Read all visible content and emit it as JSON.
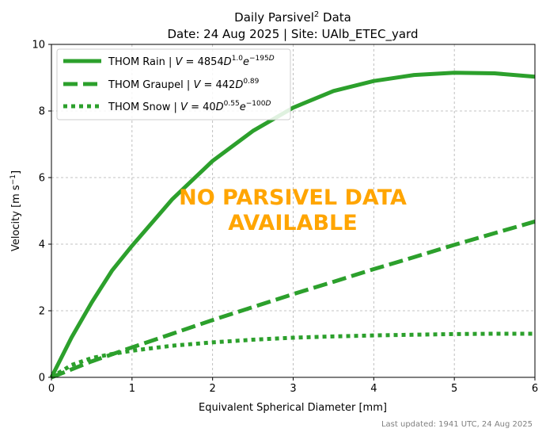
{
  "chart_data": {
    "type": "line",
    "title_line1_prefix": "Daily Parsivel",
    "title_line1_sup": "2",
    "title_line1_suffix": " Data",
    "title_line2": "Date: 24 Aug 2025 | Site: UAlb_ETEC_yard",
    "xlabel": "Equivalent Spherical Diameter [mm]",
    "ylabel_prefix": "Velocity [m s",
    "ylabel_sup": "−1",
    "ylabel_suffix": "]",
    "xlim": [
      0,
      6
    ],
    "ylim": [
      0,
      10
    ],
    "xticks": [
      "0",
      "1",
      "2",
      "3",
      "4",
      "5",
      "6"
    ],
    "yticks": [
      "0",
      "2",
      "4",
      "6",
      "8",
      "10"
    ],
    "grid": true,
    "legend_position": "top-left",
    "line_color": "#2ca02c",
    "series": [
      {
        "name_prefix": "THOM Rain | ",
        "name_formula": "V = 4854D^1.0 e^−195D",
        "style": "solid",
        "x": [
          0,
          0.25,
          0.5,
          0.75,
          1.0,
          1.5,
          2.0,
          2.5,
          3.0,
          3.5,
          4.0,
          4.5,
          5.0,
          5.5,
          6.0
        ],
        "y": [
          0,
          1.2,
          2.25,
          3.2,
          3.95,
          5.35,
          6.5,
          7.4,
          8.1,
          8.6,
          8.9,
          9.08,
          9.15,
          9.13,
          9.03
        ]
      },
      {
        "name_prefix": "THOM Graupel | ",
        "name_formula": "V = 442D^0.89",
        "style": "dashed",
        "x": [
          0,
          0.5,
          1.0,
          1.5,
          2.0,
          2.5,
          3.0,
          3.5,
          4.0,
          4.5,
          5.0,
          5.5,
          6.0
        ],
        "y": [
          0,
          0.48,
          0.9,
          1.31,
          1.72,
          2.11,
          2.5,
          2.87,
          3.25,
          3.61,
          3.98,
          4.33,
          4.68
        ]
      },
      {
        "name_prefix": "THOM Snow | ",
        "name_formula": "V = 40D^0.55 e^−100D",
        "style": "dotted",
        "x": [
          0,
          0.25,
          0.5,
          0.75,
          1.0,
          1.5,
          2.0,
          2.5,
          3.0,
          3.5,
          4.0,
          4.5,
          5.0,
          5.5,
          6.0
        ],
        "y": [
          0,
          0.37,
          0.58,
          0.7,
          0.8,
          0.95,
          1.05,
          1.13,
          1.19,
          1.23,
          1.26,
          1.28,
          1.3,
          1.31,
          1.31
        ]
      }
    ],
    "annotation_line1": "NO PARSIVEL DATA",
    "annotation_line2": "AVAILABLE",
    "annotation_color": "#ffa500",
    "footer": "Last updated: 1941 UTC, 24 Aug 2025"
  }
}
